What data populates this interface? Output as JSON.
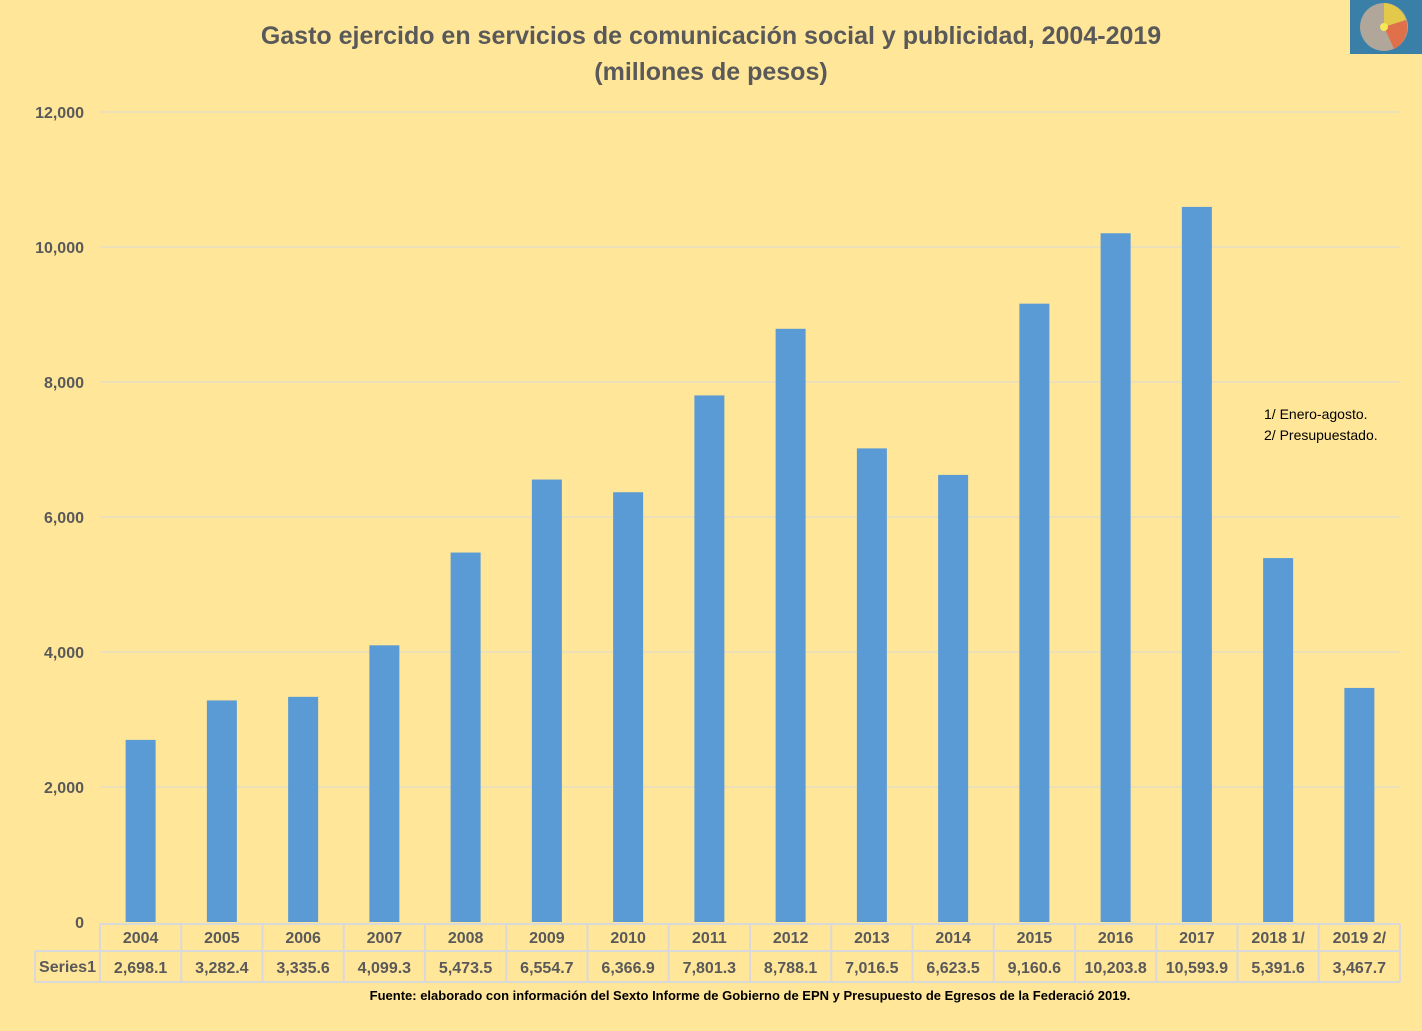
{
  "chart_data": {
    "type": "bar",
    "title": "Gasto ejercido en servicios de comunicación social y publicidad, 2004-2019",
    "subtitle": "(millones de pesos)",
    "categories": [
      "2004",
      "2005",
      "2006",
      "2007",
      "2008",
      "2009",
      "2010",
      "2011",
      "2012",
      "2013",
      "2014",
      "2015",
      "2016",
      "2017",
      "2018 1/",
      "2019 2/"
    ],
    "series": [
      {
        "name": "Series1",
        "values": [
          2698.1,
          3282.4,
          3335.6,
          4099.3,
          5473.5,
          6554.7,
          6366.9,
          7801.3,
          8788.1,
          7016.5,
          6623.5,
          9160.6,
          10203.8,
          10593.9,
          5391.6,
          3467.7
        ],
        "labels": [
          "2,698.1",
          "3,282.4",
          "3,335.6",
          "4,099.3",
          "5,473.5",
          "6,554.7",
          "6,366.9",
          "7,801.3",
          "8,788.1",
          "7,016.5",
          "6,623.5",
          "9,160.6",
          "10,203.8",
          "10,593.9",
          "5,391.6",
          "3,467.7"
        ]
      }
    ],
    "yticks": [
      "0",
      "2,000",
      "4,000",
      "6,000",
      "8,000",
      "10,000",
      "12,000"
    ],
    "ylim": [
      0,
      12000
    ],
    "grid": true,
    "legend": "data-table",
    "notes": [
      "1/ Enero-agosto.",
      "2/ Presupuestado."
    ],
    "source": "Fuente: elaborado con información del Sexto Informe de Gobierno de EPN y Presupuesto de Egresos de la Federació 2019.",
    "colors": {
      "bar": "#5B9BD5",
      "background": "#FFE699",
      "text": "#595959",
      "grid": "#D9D9D9"
    }
  }
}
